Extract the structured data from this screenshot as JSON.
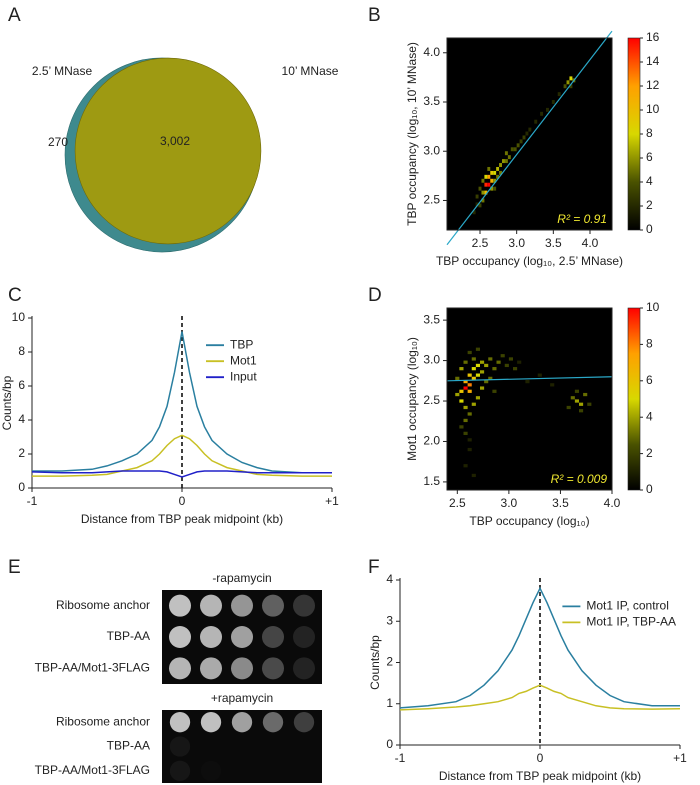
{
  "chart_data": [
    {
      "type": "venn",
      "panel": "A",
      "sets": [
        {
          "name": "2.5’ MNase",
          "color": "#3e8a8e"
        },
        {
          "name": "10’ MNase",
          "color": "#9e9a12"
        }
      ],
      "only_a": 270,
      "overlap": {
        "value": 3002,
        "label": "3,002"
      }
    },
    {
      "type": "density",
      "panel": "B",
      "x_label": "TBP occupancy (log₁₀, 2.5’ MNase)",
      "y_label": "TBP occupancy (log₁₀, 10’ MNase)",
      "xlim": [
        2.05,
        4.3
      ],
      "xticks": [
        2.5,
        {
          "value": 3,
          "label": "3.0"
        },
        3.5,
        {
          "value": 4,
          "label": "4.0"
        }
      ],
      "ylim": [
        2.2,
        4.15
      ],
      "yticks": [
        2.5,
        {
          "value": 3,
          "label": "3.0"
        },
        3.5,
        {
          "value": 4,
          "label": "4.0"
        }
      ],
      "bin": 0.04,
      "x": [
        2.5,
        2.54,
        2.54,
        2.58,
        2.58,
        2.62,
        2.62,
        2.66,
        2.58,
        2.66,
        2.7,
        2.7,
        2.74,
        2.78,
        2.78,
        2.82,
        2.86,
        2.86,
        2.9,
        2.94,
        2.98,
        3.02,
        3.06,
        3.1,
        3.14,
        3.18,
        3.26,
        3.34,
        3.42,
        3.5,
        3.58,
        3.66,
        3.7,
        3.74,
        3.78,
        3.74,
        2.46,
        2.5,
        2.54,
        2.66,
        2.7,
        2.62,
        2.74,
        2.46,
        2.42
      ],
      "y": [
        2.45,
        2.5,
        2.58,
        2.58,
        2.66,
        2.66,
        2.74,
        2.7,
        2.74,
        2.78,
        2.78,
        2.7,
        2.82,
        2.86,
        2.78,
        2.9,
        2.9,
        2.98,
        2.94,
        3.02,
        3.02,
        3.06,
        3.1,
        3.14,
        3.18,
        3.22,
        3.3,
        3.38,
        3.42,
        3.5,
        3.58,
        3.66,
        3.7,
        3.74,
        3.72,
        3.66,
        2.54,
        2.62,
        2.7,
        2.62,
        2.62,
        2.82,
        2.74,
        2.46,
        2.38
      ],
      "values": [
        3,
        5,
        6,
        10,
        15,
        16,
        12,
        11,
        8,
        9,
        8,
        6,
        7,
        6,
        5,
        6,
        5,
        5,
        5,
        4,
        4,
        4,
        3,
        3,
        2,
        2,
        2,
        2,
        2,
        2,
        2,
        4,
        6,
        8,
        5,
        3,
        3,
        4,
        5,
        6,
        4,
        5,
        5,
        2,
        2
      ],
      "colormap": [
        "#000000",
        "#4a5200",
        "#d8d800",
        "#ffa000",
        "#ff0000"
      ],
      "clim": [
        0,
        16
      ],
      "cticks": [
        0,
        2,
        4,
        6,
        8,
        10,
        12,
        14,
        16
      ],
      "fit_line": {
        "color": "#2aa8c8",
        "x": [
          2.05,
          4.3
        ],
        "y": [
          2.05,
          4.22
        ]
      },
      "annotation": "R² = 0.91"
    },
    {
      "type": "line",
      "panel": "C",
      "x_label": "Distance from TBP peak midpoint (kb)",
      "y_label": "Counts/bp",
      "xlim": [
        -1,
        1
      ],
      "xticks": [
        -1,
        0,
        {
          "value": 1,
          "label": "+1"
        }
      ],
      "ylim": [
        0,
        10
      ],
      "yticks": [
        0,
        2,
        4,
        6,
        8,
        10
      ],
      "vline": 0,
      "legend": "upper right",
      "x": [
        -1,
        -0.8,
        -0.6,
        -0.5,
        -0.4,
        -0.3,
        -0.2,
        -0.15,
        -0.1,
        -0.05,
        0,
        0.05,
        0.1,
        0.15,
        0.2,
        0.3,
        0.4,
        0.5,
        0.6,
        0.8,
        1
      ],
      "series": [
        {
          "name": "TBP",
          "color": "#2a7fa0",
          "values": [
            1.0,
            1.0,
            1.1,
            1.3,
            1.6,
            2.0,
            2.8,
            3.6,
            4.8,
            6.8,
            9.2,
            6.8,
            4.8,
            3.6,
            2.8,
            2.0,
            1.5,
            1.2,
            1.0,
            0.9,
            0.9
          ]
        },
        {
          "name": "Mot1",
          "color": "#c8c024",
          "values": [
            0.7,
            0.7,
            0.75,
            0.8,
            1.0,
            1.2,
            1.6,
            2.0,
            2.5,
            2.9,
            3.1,
            2.9,
            2.5,
            2.0,
            1.6,
            1.2,
            1.0,
            0.8,
            0.75,
            0.7,
            0.7
          ]
        },
        {
          "name": "Input",
          "color": "#2020c8",
          "values": [
            0.95,
            0.9,
            0.9,
            0.95,
            1.0,
            1.0,
            1.0,
            1.0,
            0.95,
            0.8,
            0.65,
            0.8,
            0.95,
            1.0,
            1.0,
            1.0,
            0.95,
            0.9,
            0.9,
            0.9,
            0.9
          ]
        }
      ]
    },
    {
      "type": "density",
      "panel": "D",
      "x_label": "TBP occupancy (log₁₀)",
      "y_label": "Mot1 occupancy (log₁₀)",
      "xlim": [
        2.4,
        4.0
      ],
      "xticks": [
        2.5,
        {
          "value": 3,
          "label": "3.0"
        },
        3.5,
        {
          "value": 4,
          "label": "4.0"
        }
      ],
      "ylim": [
        1.4,
        3.65
      ],
      "yticks": [
        1.5,
        {
          "value": 2,
          "label": "2.0"
        },
        2.5,
        {
          "value": 3,
          "label": "3.0"
        },
        3.5
      ],
      "bin": 0.04,
      "x": [
        2.58,
        2.62,
        2.58,
        2.62,
        2.54,
        2.66,
        2.62,
        2.66,
        2.7,
        2.74,
        2.7,
        2.74,
        2.78,
        2.82,
        2.86,
        2.9,
        2.94,
        2.98,
        3.02,
        3.06,
        3.1,
        2.54,
        2.58,
        2.62,
        2.58,
        2.54,
        2.58,
        2.62,
        2.66,
        2.7,
        2.74,
        2.78,
        2.82,
        2.86,
        2.66,
        2.62,
        2.7,
        2.54,
        2.5,
        2.5,
        2.58,
        2.62,
        2.58,
        2.66,
        3.66,
        3.7,
        3.62,
        3.74,
        3.7,
        3.66,
        3.58,
        3.78,
        3.42,
        3.3,
        3.18
      ],
      "y": [
        2.66,
        2.7,
        2.74,
        2.62,
        2.62,
        2.78,
        2.82,
        2.9,
        2.94,
        2.98,
        2.82,
        2.86,
        2.94,
        3.02,
        2.9,
        2.98,
        3.06,
        2.94,
        3.02,
        2.9,
        2.98,
        2.5,
        2.42,
        2.34,
        2.26,
        2.18,
        2.1,
        2.02,
        2.46,
        2.54,
        2.66,
        2.74,
        2.78,
        2.62,
        3.02,
        3.1,
        3.14,
        2.9,
        2.78,
        2.58,
        2.98,
        1.9,
        1.7,
        1.58,
        2.5,
        2.46,
        2.54,
        2.58,
        2.38,
        2.62,
        2.42,
        2.46,
        2.7,
        2.82,
        2.74
      ],
      "values": [
        10,
        8,
        7,
        7,
        6,
        6,
        6,
        5,
        5,
        4,
        5,
        4,
        4,
        3,
        3,
        3,
        2,
        2,
        2,
        2,
        1,
        5,
        4,
        3,
        3,
        2,
        2,
        1,
        4,
        4,
        4,
        3,
        3,
        2,
        3,
        2,
        2,
        4,
        3,
        4,
        3,
        1,
        1,
        1,
        4,
        4,
        3,
        3,
        2,
        2,
        2,
        2,
        1,
        1,
        1
      ],
      "colormap": [
        "#000000",
        "#4a5200",
        "#d8d800",
        "#ffa000",
        "#ff0000"
      ],
      "clim": [
        0,
        10
      ],
      "cticks": [
        0,
        2,
        4,
        6,
        8,
        10
      ],
      "fit_line": {
        "color": "#2aa8c8",
        "x": [
          2.4,
          4.0
        ],
        "y": [
          2.75,
          2.8
        ]
      },
      "annotation": "R² = 0.009"
    },
    {
      "type": "spot-assay",
      "panel": "E",
      "groups": [
        {
          "title": "-rapamycin",
          "rows": [
            "Ribosome anchor",
            "TBP-AA",
            "TBP-AA/Mot1-3FLAG"
          ]
        },
        {
          "title": "+rapamycin",
          "rows": [
            "Ribosome anchor",
            "TBP-AA",
            "TBP-AA/Mot1-3FLAG"
          ]
        }
      ]
    },
    {
      "type": "line",
      "panel": "F",
      "x_label": "Distance from TBP peak midpoint (kb)",
      "y_label": "Counts/bp",
      "xlim": [
        -1,
        1
      ],
      "xticks": [
        -1,
        0,
        {
          "value": 1,
          "label": "+1"
        }
      ],
      "ylim": [
        0,
        4
      ],
      "yticks": [
        0,
        1,
        2,
        3,
        4
      ],
      "vline": 0,
      "legend": "upper right",
      "x": [
        -1,
        -0.8,
        -0.6,
        -0.5,
        -0.4,
        -0.3,
        -0.2,
        -0.15,
        -0.1,
        -0.05,
        0,
        0.05,
        0.1,
        0.15,
        0.2,
        0.3,
        0.4,
        0.5,
        0.6,
        0.8,
        1
      ],
      "series": [
        {
          "name": "Mot1 IP, control",
          "color": "#2a7fa0",
          "values": [
            0.9,
            0.95,
            1.05,
            1.2,
            1.45,
            1.8,
            2.3,
            2.65,
            3.05,
            3.45,
            3.8,
            3.45,
            3.05,
            2.65,
            2.3,
            1.8,
            1.45,
            1.2,
            1.05,
            0.95,
            0.95
          ]
        },
        {
          "name": "Mot1 IP, TBP-AA",
          "color": "#c8c024",
          "values": [
            0.85,
            0.88,
            0.92,
            0.95,
            1.0,
            1.05,
            1.15,
            1.25,
            1.3,
            1.38,
            1.45,
            1.38,
            1.3,
            1.25,
            1.15,
            1.05,
            0.95,
            0.9,
            0.88,
            0.87,
            0.88
          ]
        }
      ]
    }
  ]
}
